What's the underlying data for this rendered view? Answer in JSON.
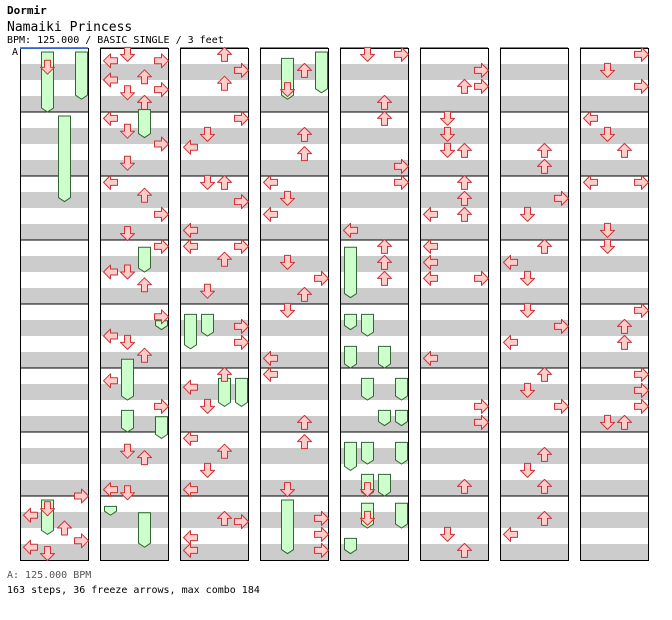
{
  "header": {
    "artist": "Dormir",
    "title": "Namaiki Princess",
    "info": "BPM: 125.000 / BASIC SINGLE / 3 feet",
    "start_marker": "A"
  },
  "footer": {
    "bpm_line": "A: 125.000 BPM",
    "stats_line": "163 steps, 36 freeze arrows, max combo 184"
  },
  "colors": {
    "stripe": "#cccccc",
    "arrow_fill": "#ffcccc",
    "arrow_stroke": "#cc3333",
    "freeze_fill": "#ccffcc",
    "freeze_stroke": "#336633",
    "border": "#000000"
  },
  "chart_data": {
    "type": "step-chart",
    "columns": 8,
    "measures_per_column": 8,
    "lanes": [
      "left",
      "down",
      "up",
      "right"
    ],
    "total_steps": 163,
    "freeze_arrows": 36,
    "max_combo": 184,
    "bpm": 125.0,
    "notes": [
      [
        0,
        1,
        0.3
      ],
      [
        0,
        3,
        7
      ],
      [
        0,
        0,
        7.8
      ],
      [
        0,
        2,
        7.5
      ],
      [
        0,
        0,
        7.3
      ],
      [
        0,
        1,
        7.2
      ],
      [
        0,
        3,
        7.7
      ],
      [
        0,
        1,
        7.9
      ],
      [
        1,
        0,
        0.2
      ],
      [
        1,
        1,
        0.1
      ],
      [
        1,
        3,
        0.2
      ],
      [
        1,
        0,
        0.5
      ],
      [
        1,
        2,
        0.45
      ],
      [
        1,
        1,
        0.7
      ],
      [
        1,
        3,
        0.65
      ],
      [
        1,
        2,
        0.85
      ],
      [
        1,
        0,
        1.1
      ],
      [
        1,
        1,
        1.3
      ],
      [
        1,
        3,
        1.5
      ],
      [
        1,
        1,
        1.8
      ],
      [
        1,
        0,
        2.1
      ],
      [
        1,
        2,
        2.3
      ],
      [
        1,
        3,
        2.6
      ],
      [
        1,
        1,
        2.9
      ],
      [
        1,
        0,
        3.5
      ],
      [
        1,
        3,
        3.1
      ],
      [
        1,
        2,
        3.7
      ],
      [
        1,
        1,
        3.5
      ],
      [
        1,
        3,
        4.2
      ],
      [
        1,
        0,
        4.5
      ],
      [
        1,
        1,
        4.6
      ],
      [
        1,
        2,
        4.8
      ],
      [
        1,
        0,
        5.2
      ],
      [
        1,
        3,
        5.6
      ],
      [
        1,
        1,
        6.3
      ],
      [
        1,
        2,
        6.4
      ],
      [
        1,
        0,
        6.9
      ],
      [
        1,
        1,
        6.95
      ],
      [
        2,
        2,
        0.1
      ],
      [
        2,
        3,
        0.35
      ],
      [
        2,
        2,
        0.55
      ],
      [
        2,
        3,
        1.1
      ],
      [
        2,
        1,
        1.35
      ],
      [
        2,
        0,
        1.55
      ],
      [
        2,
        1,
        2.1
      ],
      [
        2,
        2,
        2.1
      ],
      [
        2,
        3,
        2.4
      ],
      [
        2,
        0,
        2.85
      ],
      [
        2,
        0,
        3.1
      ],
      [
        2,
        2,
        3.3
      ],
      [
        2,
        3,
        3.1
      ],
      [
        2,
        1,
        3.8
      ],
      [
        2,
        3,
        4.35
      ],
      [
        2,
        3,
        4.6
      ],
      [
        2,
        0,
        5.3
      ],
      [
        2,
        2,
        5.1
      ],
      [
        2,
        1,
        5.6
      ],
      [
        2,
        0,
        6.1
      ],
      [
        2,
        2,
        6.3
      ],
      [
        2,
        1,
        6.6
      ],
      [
        2,
        0,
        6.9
      ],
      [
        2,
        2,
        7.35
      ],
      [
        2,
        3,
        7.4
      ],
      [
        2,
        0,
        7.65
      ],
      [
        2,
        0,
        7.85
      ],
      [
        3,
        2,
        0.35
      ],
      [
        3,
        1,
        0.65
      ],
      [
        3,
        2,
        1.35
      ],
      [
        3,
        2,
        1.65
      ],
      [
        3,
        0,
        2.1
      ],
      [
        3,
        1,
        2.35
      ],
      [
        3,
        0,
        2.6
      ],
      [
        3,
        1,
        3.35
      ],
      [
        3,
        3,
        3.6
      ],
      [
        3,
        2,
        3.85
      ],
      [
        3,
        1,
        4.1
      ],
      [
        3,
        0,
        4.85
      ],
      [
        3,
        0,
        5.1
      ],
      [
        3,
        2,
        5.85
      ],
      [
        3,
        2,
        6.15
      ],
      [
        3,
        1,
        6.9
      ],
      [
        3,
        3,
        7.35
      ],
      [
        3,
        3,
        7.6
      ],
      [
        3,
        3,
        7.85
      ],
      [
        4,
        1,
        0.1
      ],
      [
        4,
        3,
        0.1
      ],
      [
        4,
        2,
        0.85
      ],
      [
        4,
        2,
        1.1
      ],
      [
        4,
        3,
        1.85
      ],
      [
        4,
        3,
        2.1
      ],
      [
        4,
        0,
        2.85
      ],
      [
        4,
        2,
        3.1
      ],
      [
        4,
        2,
        3.35
      ],
      [
        4,
        2,
        3.6
      ],
      [
        4,
        1,
        6.9
      ],
      [
        4,
        1,
        7.35
      ],
      [
        5,
        3,
        0.35
      ],
      [
        5,
        3,
        0.6
      ],
      [
        5,
        2,
        0.6
      ],
      [
        5,
        1,
        1.1
      ],
      [
        5,
        1,
        1.35
      ],
      [
        5,
        1,
        1.6
      ],
      [
        5,
        2,
        1.6
      ],
      [
        5,
        2,
        2.1
      ],
      [
        5,
        2,
        2.35
      ],
      [
        5,
        0,
        2.6
      ],
      [
        5,
        2,
        2.6
      ],
      [
        5,
        0,
        3.1
      ],
      [
        5,
        0,
        3.35
      ],
      [
        5,
        0,
        3.6
      ],
      [
        5,
        3,
        3.6
      ],
      [
        5,
        0,
        4.85
      ],
      [
        5,
        3,
        5.6
      ],
      [
        5,
        3,
        5.85
      ],
      [
        5,
        2,
        6.85
      ],
      [
        5,
        1,
        7.6
      ],
      [
        5,
        2,
        7.85
      ],
      [
        6,
        2,
        1.6
      ],
      [
        6,
        2,
        1.85
      ],
      [
        6,
        3,
        2.35
      ],
      [
        6,
        1,
        2.6
      ],
      [
        6,
        2,
        3.1
      ],
      [
        6,
        0,
        3.35
      ],
      [
        6,
        1,
        3.6
      ],
      [
        6,
        1,
        4.1
      ],
      [
        6,
        3,
        4.35
      ],
      [
        6,
        0,
        4.6
      ],
      [
        6,
        2,
        5.1
      ],
      [
        6,
        1,
        5.35
      ],
      [
        6,
        3,
        5.6
      ],
      [
        6,
        2,
        6.35
      ],
      [
        6,
        1,
        6.6
      ],
      [
        6,
        2,
        6.85
      ],
      [
        6,
        2,
        7.35
      ],
      [
        6,
        0,
        7.6
      ],
      [
        7,
        3,
        0.1
      ],
      [
        7,
        1,
        0.35
      ],
      [
        7,
        3,
        0.6
      ],
      [
        7,
        0,
        1.1
      ],
      [
        7,
        1,
        1.35
      ],
      [
        7,
        2,
        1.6
      ],
      [
        7,
        0,
        2.1
      ],
      [
        7,
        3,
        2.1
      ],
      [
        7,
        1,
        2.85
      ],
      [
        7,
        1,
        3.1
      ],
      [
        7,
        3,
        4.1
      ],
      [
        7,
        2,
        4.35
      ],
      [
        7,
        2,
        4.6
      ],
      [
        7,
        3,
        5.1
      ],
      [
        7,
        3,
        5.35
      ],
      [
        7,
        3,
        5.6
      ],
      [
        7,
        1,
        5.85
      ],
      [
        7,
        2,
        5.85
      ]
    ],
    "freezes": [
      [
        0,
        1,
        0,
        1.0
      ],
      [
        0,
        2,
        1,
        2.4
      ],
      [
        0,
        3,
        0,
        0.8
      ],
      [
        0,
        1,
        7.0,
        7.6
      ],
      [
        1,
        2,
        0.9,
        1.4
      ],
      [
        1,
        2,
        3.05,
        3.5
      ],
      [
        1,
        3,
        4.2,
        4.4
      ],
      [
        1,
        1,
        4.8,
        5.5
      ],
      [
        1,
        1,
        5.6,
        6.0
      ],
      [
        1,
        3,
        5.7,
        6.1
      ],
      [
        1,
        0,
        7.1,
        7.3
      ],
      [
        1,
        2,
        7.2,
        7.8
      ],
      [
        2,
        0,
        4.1,
        4.7
      ],
      [
        2,
        1,
        4.1,
        4.5
      ],
      [
        2,
        2,
        5.1,
        5.6
      ],
      [
        2,
        3,
        5.1,
        5.6
      ],
      [
        3,
        1,
        0.1,
        0.8
      ],
      [
        3,
        3,
        0,
        0.7
      ],
      [
        3,
        1,
        7.0,
        7.9
      ],
      [
        4,
        0,
        3.05,
        3.9
      ],
      [
        4,
        0,
        4.1,
        4.4
      ],
      [
        4,
        1,
        4.1,
        4.5
      ],
      [
        4,
        0,
        4.6,
        5.0
      ],
      [
        4,
        2,
        4.6,
        5.0
      ],
      [
        4,
        1,
        5.1,
        5.5
      ],
      [
        4,
        3,
        5.1,
        5.5
      ],
      [
        4,
        2,
        5.6,
        5.9
      ],
      [
        4,
        3,
        5.6,
        5.9
      ],
      [
        4,
        1,
        6.1,
        6.5
      ],
      [
        4,
        3,
        6.1,
        6.5
      ],
      [
        4,
        0,
        6.1,
        6.6
      ],
      [
        4,
        2,
        6.6,
        7.0
      ],
      [
        4,
        1,
        6.6,
        7.0
      ],
      [
        4,
        1,
        7.05,
        7.5
      ],
      [
        4,
        3,
        7.05,
        7.5
      ],
      [
        4,
        0,
        7.6,
        7.9
      ]
    ]
  }
}
